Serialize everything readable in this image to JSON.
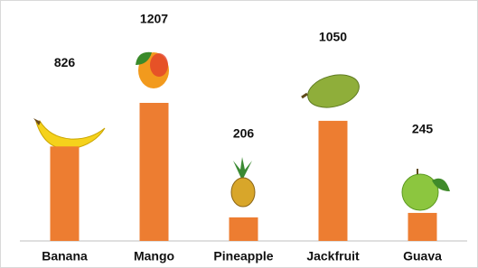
{
  "chart_data": {
    "type": "bar",
    "categories": [
      "Banana",
      "Mango",
      "Pineapple",
      "Jackfruit",
      "Guava"
    ],
    "values": [
      826,
      1207,
      206,
      1050,
      245
    ],
    "color": "#ed7d31"
  }
}
